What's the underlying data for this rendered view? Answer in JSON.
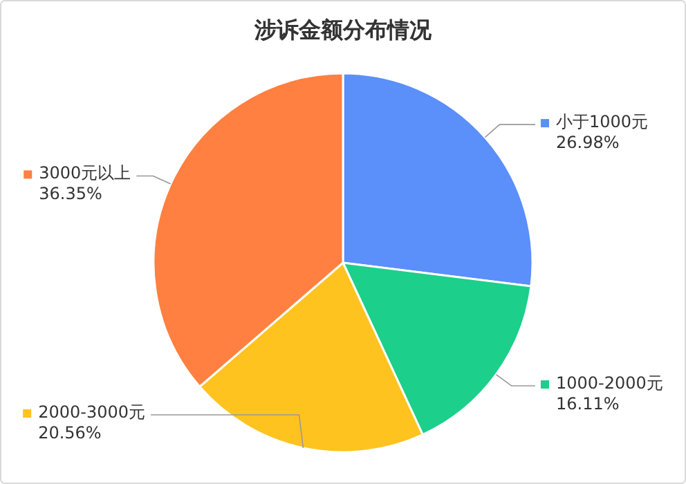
{
  "chart_data": {
    "type": "pie",
    "title": "涉诉金额分布情况",
    "categories": [
      "小于1000元",
      "1000-2000元",
      "2000-3000元",
      "3000元以上"
    ],
    "values": [
      26.98,
      16.11,
      20.56,
      36.35
    ],
    "colors": [
      "#5b8ff9",
      "#1ccf8b",
      "#ffc31f",
      "#ff8040"
    ],
    "value_labels": [
      "26.98%",
      "16.11%",
      "20.56%",
      "36.35%"
    ],
    "legend": "right"
  }
}
